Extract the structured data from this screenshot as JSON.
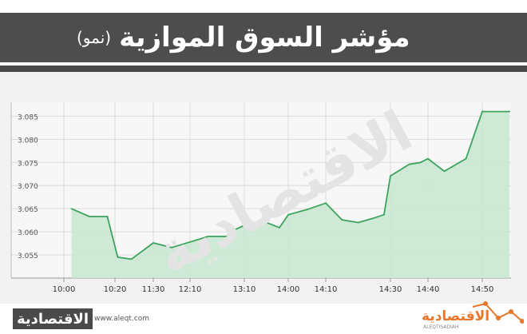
{
  "header": {
    "title": "مؤشر السوق الموازية",
    "subtitle": "(نمو)"
  },
  "footer": {
    "logo_left_text": "الاقتصادية",
    "url": "www.aleqt.com",
    "logo_right_text": "الاقتصادية",
    "logo_right_sub": "ALEQTISADIAH"
  },
  "watermark": "الاقتصادية",
  "colors": {
    "line": "#3da35d",
    "fill": "#c9e8d2",
    "header": "#4d4d4d",
    "accent": "#e8762b"
  },
  "chart_data": {
    "type": "area",
    "title": "مؤشر السوق الموازية (نمو)",
    "xlabel": "",
    "ylabel": "",
    "ylim": [
      3.05,
      3.088
    ],
    "y_ticks": [
      "3.055",
      "3.060",
      "3.065",
      "3.070",
      "3.075",
      "3.080",
      "3.085"
    ],
    "x_ticks": [
      "10:00",
      "10:20",
      "11:30",
      "12:10",
      "13:10",
      "14:00",
      "14:10",
      "14:30",
      "14:40",
      "14:50"
    ],
    "grid": true,
    "series": [
      {
        "points": [
          {
            "x": "10:03",
            "y": 3.065
          },
          {
            "x": "10:10",
            "y": 3.0633
          },
          {
            "x": "10:17",
            "y": 3.0633
          },
          {
            "x": "10:25",
            "y": 3.0545
          },
          {
            "x": "10:50",
            "y": 3.0541
          },
          {
            "x": "11:30",
            "y": 3.0576
          },
          {
            "x": "11:50",
            "y": 3.0566
          },
          {
            "x": "12:10",
            "y": 3.0578
          },
          {
            "x": "12:30",
            "y": 3.059
          },
          {
            "x": "12:50",
            "y": 3.059
          },
          {
            "x": "13:00",
            "y": 3.0605
          },
          {
            "x": "13:10",
            "y": 3.0614
          },
          {
            "x": "13:30",
            "y": 3.0624
          },
          {
            "x": "13:50",
            "y": 3.0609
          },
          {
            "x": "14:00",
            "y": 3.0637
          },
          {
            "x": "14:05",
            "y": 3.0648
          },
          {
            "x": "14:10",
            "y": 3.0662
          },
          {
            "x": "14:15",
            "y": 3.0626
          },
          {
            "x": "14:20",
            "y": 3.062
          },
          {
            "x": "14:25",
            "y": 3.063
          },
          {
            "x": "14:28",
            "y": 3.0637
          },
          {
            "x": "14:30",
            "y": 3.0721
          },
          {
            "x": "14:35",
            "y": 3.0746
          },
          {
            "x": "14:38",
            "y": 3.075
          },
          {
            "x": "14:40",
            "y": 3.0758
          },
          {
            "x": "14:43",
            "y": 3.0731
          },
          {
            "x": "14:47",
            "y": 3.0758
          },
          {
            "x": "14:50",
            "y": 3.086
          },
          {
            "x": "14:55",
            "y": 3.086
          }
        ]
      }
    ]
  }
}
